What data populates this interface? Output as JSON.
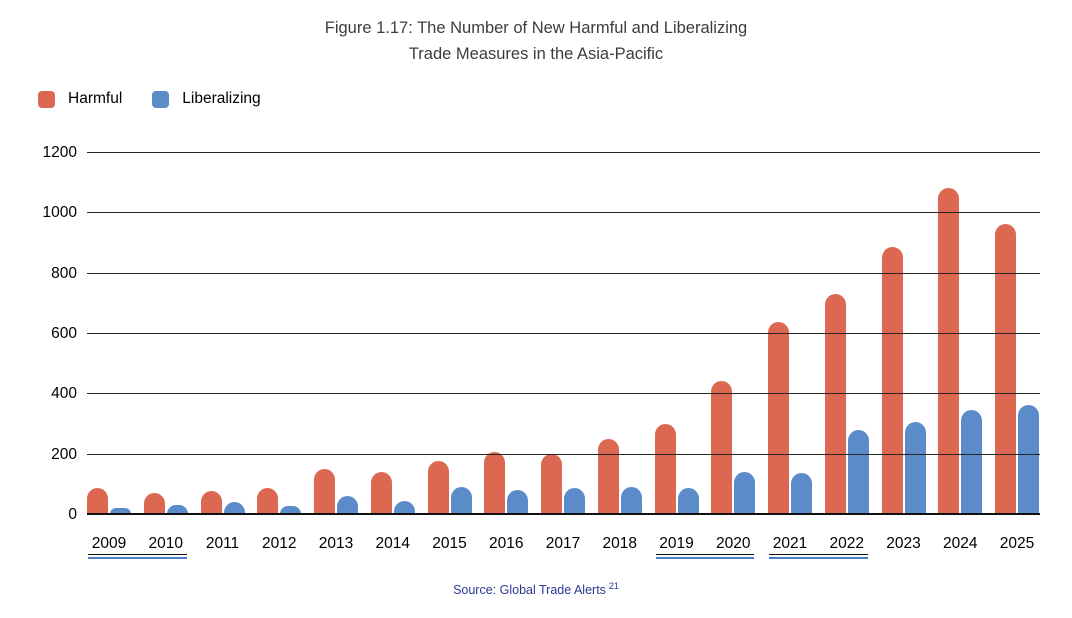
{
  "title": {
    "line1": "Figure 1.17: The Number of New Harmful and Liberalizing",
    "line2": "Trade Measures in the Asia-Pacific"
  },
  "source": {
    "prefix": "Source: Global Trade Alerts",
    "superscript": "21"
  },
  "colors": {
    "harmful": "#DC6852",
    "liberalizing": "#5B8CC9",
    "link_underline": "#4B7EC8",
    "source_text": "#2B3990"
  },
  "chart_data": {
    "type": "bar",
    "title": "Figure 1.17: The Number of New Harmful and Liberalizing Trade Measures in the Asia-Pacific",
    "categories": [
      "2009",
      "2010",
      "2011",
      "2012",
      "2013",
      "2014",
      "2015",
      "2016",
      "2017",
      "2018",
      "2019",
      "2020",
      "2021",
      "2022",
      "2023",
      "2024",
      "2025"
    ],
    "series": [
      {
        "name": "Harmful",
        "color": "#DC6852",
        "values": [
          85,
          70,
          75,
          87,
          150,
          138,
          177,
          205,
          200,
          250,
          300,
          440,
          635,
          730,
          885,
          1080,
          960
        ]
      },
      {
        "name": "Liberalizing",
        "color": "#5B8CC9",
        "values": [
          20,
          30,
          40,
          27,
          60,
          42,
          90,
          80,
          85,
          90,
          85,
          140,
          135,
          280,
          305,
          345,
          360
        ]
      }
    ],
    "xlabel": "",
    "ylabel": "",
    "ylim": [
      0,
      1200
    ],
    "yticks": [
      0,
      200,
      400,
      600,
      800,
      1000,
      1200
    ],
    "grid": true,
    "legend_position": "top-left",
    "underlined_year_groups": [
      [
        "2009",
        "2010"
      ],
      [
        "2019",
        "2020"
      ],
      [
        "2021",
        "2022"
      ]
    ]
  }
}
